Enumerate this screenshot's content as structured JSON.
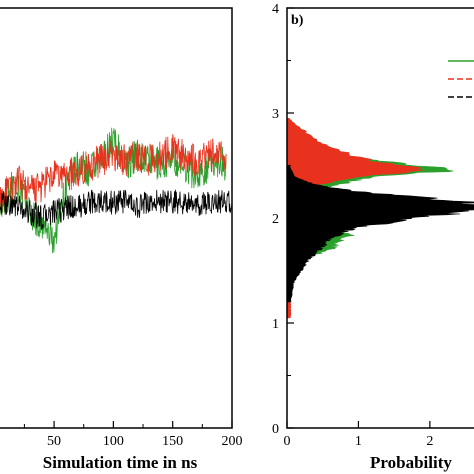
{
  "chart_data": [
    {
      "type": "line",
      "panel": "a",
      "xlabel": "Simulation time in ns",
      "ylabel": "",
      "xlim": [
        -4,
        200
      ],
      "ylim": [
        0,
        4
      ],
      "xticks": [
        "50",
        "100",
        "150",
        "200"
      ],
      "xtick_values": [
        50,
        100,
        150,
        200
      ],
      "series": [
        {
          "color": "#2ca02c",
          "x": [
            0,
            10,
            20,
            30,
            40,
            50,
            60,
            70,
            80,
            90,
            100,
            110,
            120,
            130,
            140,
            150,
            160,
            170,
            180,
            190,
            195
          ],
          "y": [
            2.05,
            2.2,
            2.3,
            2.05,
            1.9,
            1.8,
            2.3,
            2.5,
            2.45,
            2.55,
            2.75,
            2.5,
            2.6,
            2.55,
            2.5,
            2.55,
            2.5,
            2.4,
            2.5,
            2.55,
            2.5
          ]
        },
        {
          "color": "#e8321e",
          "x": [
            0,
            10,
            20,
            30,
            40,
            50,
            60,
            70,
            80,
            90,
            100,
            110,
            120,
            130,
            140,
            150,
            160,
            170,
            180,
            190,
            195
          ],
          "y": [
            2.1,
            2.25,
            2.35,
            2.25,
            2.3,
            2.4,
            2.4,
            2.45,
            2.5,
            2.55,
            2.6,
            2.55,
            2.6,
            2.55,
            2.6,
            2.65,
            2.6,
            2.55,
            2.6,
            2.6,
            2.55
          ]
        },
        {
          "color": "#000000",
          "x": [
            0,
            10,
            20,
            30,
            40,
            50,
            60,
            70,
            80,
            90,
            100,
            110,
            120,
            130,
            140,
            150,
            160,
            170,
            180,
            190,
            200
          ],
          "y": [
            2.1,
            2.15,
            2.1,
            2.05,
            2.0,
            2.05,
            2.1,
            2.1,
            2.15,
            2.15,
            2.15,
            2.15,
            2.1,
            2.15,
            2.15,
            2.15,
            2.15,
            2.1,
            2.15,
            2.15,
            2.15
          ]
        }
      ]
    },
    {
      "type": "area",
      "panel": "b",
      "panel_label": "b)",
      "xlabel": "Probability",
      "xlim": [
        0,
        2.8
      ],
      "ylim": [
        0,
        4
      ],
      "xticks": [
        "0",
        "1",
        "2"
      ],
      "xtick_values": [
        0,
        1,
        2
      ],
      "yticks": [
        "0",
        "1",
        "2",
        "3",
        "4"
      ],
      "ytick_values": [
        0,
        1,
        2,
        3,
        4
      ],
      "orientation": "horizontal",
      "legend_placement": "top-right",
      "legend": [
        {
          "color": "#2ca02c",
          "style": "solid"
        },
        {
          "color": "#e8321e",
          "style": "dashed"
        },
        {
          "color": "#000000",
          "style": "dashed"
        }
      ],
      "series": [
        {
          "color": "#2ca02c",
          "y": [
            1.5,
            1.6,
            1.7,
            1.8,
            1.85,
            1.9,
            2.0,
            2.1,
            2.2,
            2.3,
            2.4,
            2.45,
            2.5,
            2.55,
            2.6,
            2.7,
            2.8,
            2.9
          ],
          "p": [
            0.05,
            0.2,
            0.6,
            0.8,
            0.9,
            0.5,
            0.3,
            0.3,
            0.4,
            0.6,
            1.2,
            2.3,
            1.9,
            1.2,
            0.8,
            0.4,
            0.15,
            0.03
          ]
        },
        {
          "color": "#e8321e",
          "y": [
            1.05,
            1.2,
            1.5,
            2.3,
            2.4,
            2.45,
            2.5,
            2.55,
            2.6,
            2.7,
            2.8,
            2.9,
            2.95
          ],
          "p": [
            0.05,
            0.05,
            0.05,
            0.3,
            1.1,
            1.9,
            1.6,
            1.2,
            0.9,
            0.5,
            0.3,
            0.1,
            0.03
          ]
        },
        {
          "color": "#000000",
          "y": [
            1.2,
            1.4,
            1.5,
            1.6,
            1.7,
            1.8,
            1.9,
            2.0,
            2.05,
            2.1,
            2.15,
            2.2,
            2.25,
            2.3,
            2.35,
            2.4,
            2.5
          ],
          "p": [
            0.05,
            0.1,
            0.2,
            0.3,
            0.45,
            0.6,
            0.9,
            1.8,
            2.4,
            2.75,
            2.5,
            1.8,
            1.0,
            0.5,
            0.25,
            0.1,
            0.03
          ]
        }
      ]
    }
  ]
}
